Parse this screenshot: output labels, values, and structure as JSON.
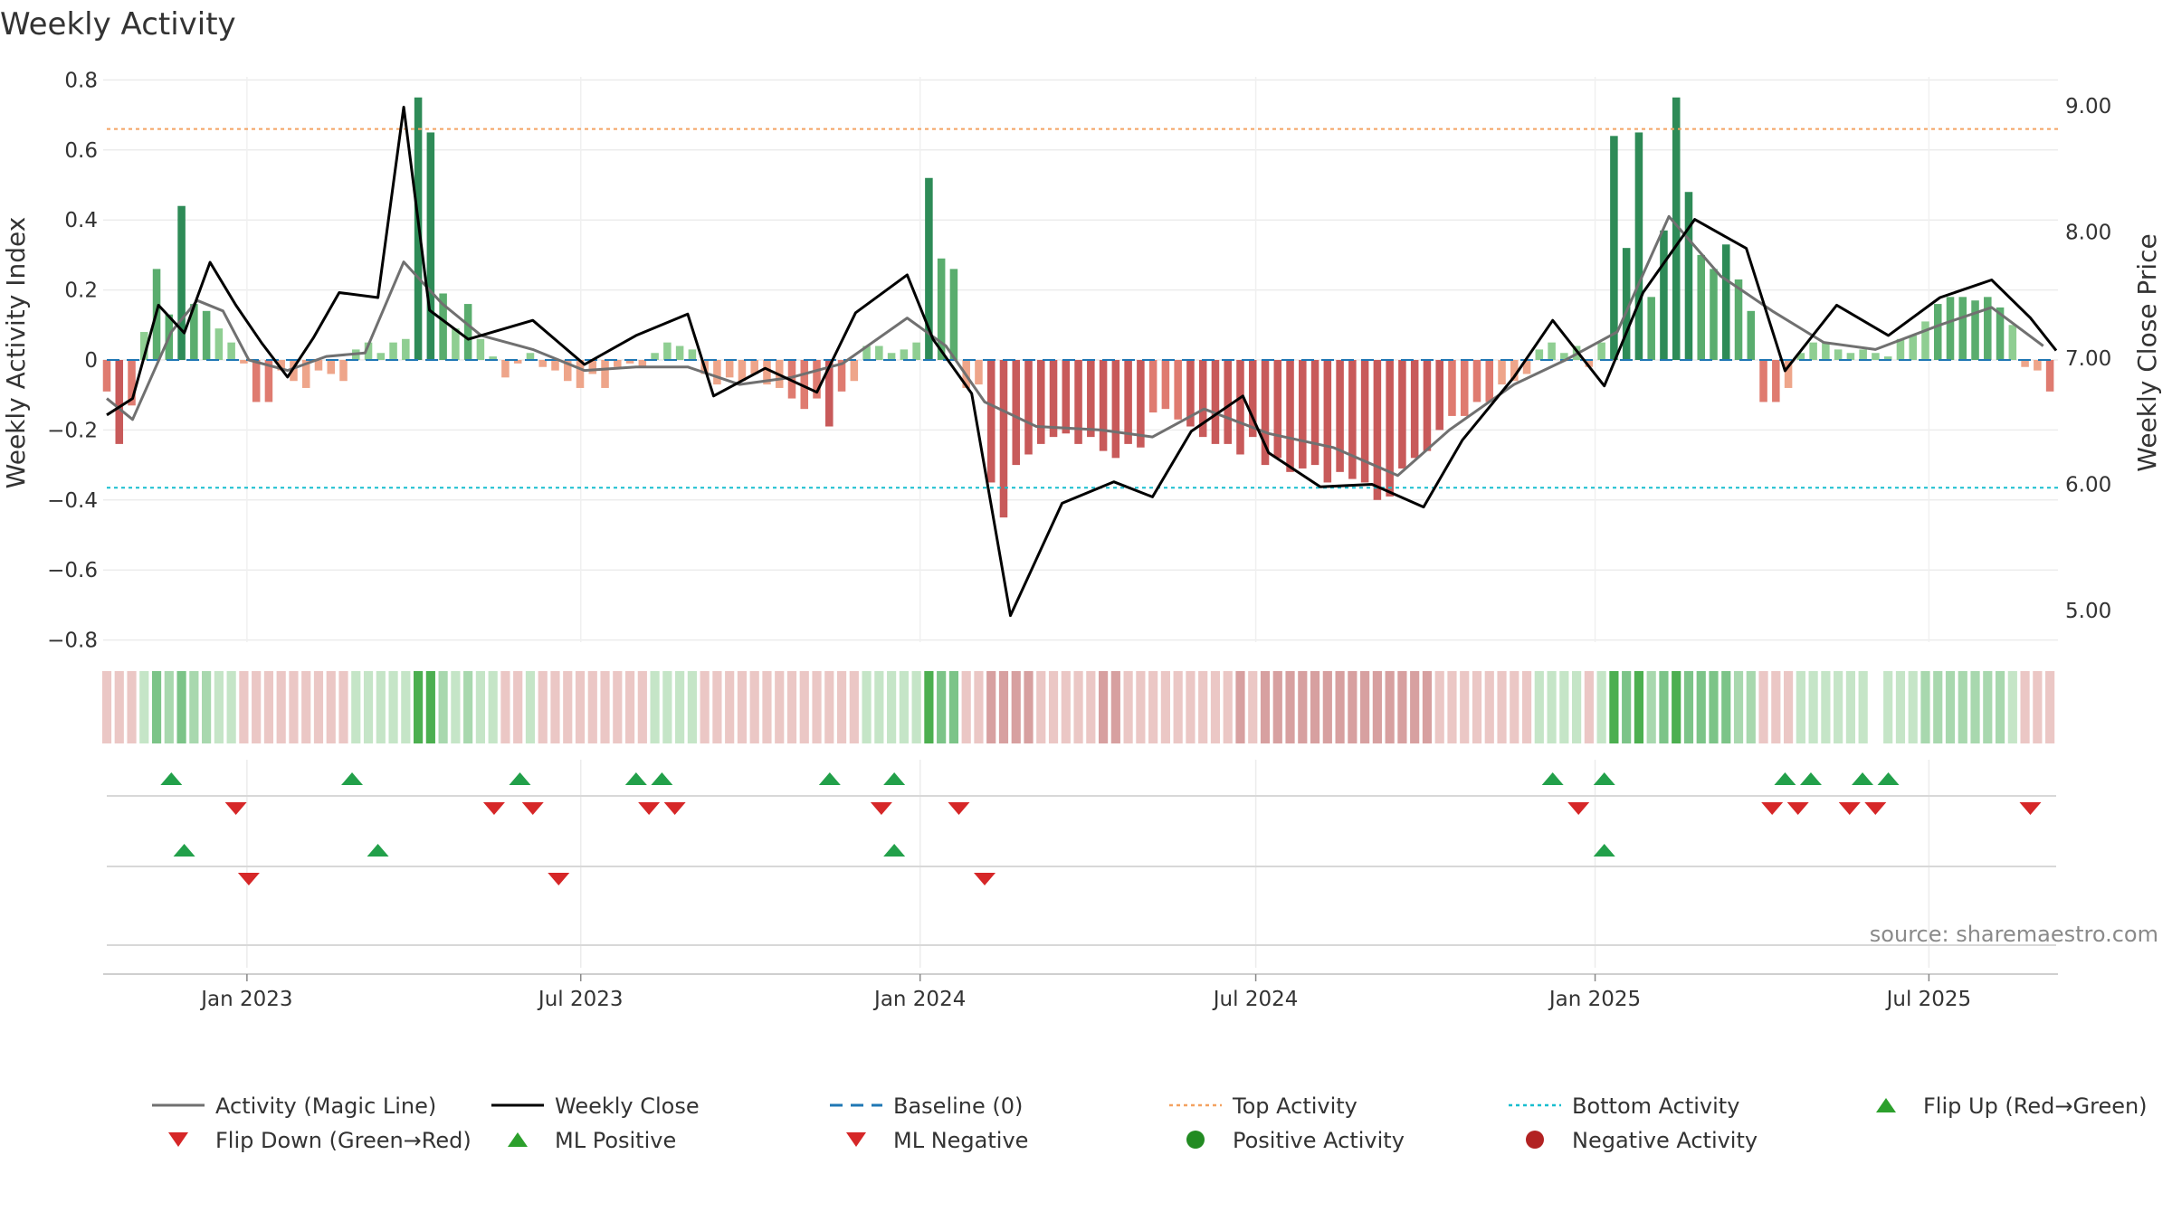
{
  "chart_data": {
    "type": "bar",
    "title": "Weekly Activity",
    "ylabel_left": "Weekly Activity Index",
    "ylabel_right": "Weekly Close Price",
    "source_text": "source: sharemaestro.com",
    "x_start": "2022-10-17",
    "x_end": "2025-09-08",
    "x_ticks": [
      {
        "date": "2023-01-01",
        "label": "Jan 2023"
      },
      {
        "date": "2023-07-01",
        "label": "Jul 2023"
      },
      {
        "date": "2024-01-01",
        "label": "Jan 2024"
      },
      {
        "date": "2024-07-01",
        "label": "Jul 2024"
      },
      {
        "date": "2025-01-01",
        "label": "Jan 2025"
      },
      {
        "date": "2025-07-01",
        "label": "Jul 2025"
      }
    ],
    "ylim_left": [
      -0.8,
      0.8
    ],
    "yticks_left": [
      {
        "v": 0.8,
        "label": "0.8"
      },
      {
        "v": 0.6,
        "label": "0.6"
      },
      {
        "v": 0.4,
        "label": "0.4"
      },
      {
        "v": 0.2,
        "label": "0.2"
      },
      {
        "v": 0,
        "label": "0"
      },
      {
        "v": -0.2,
        "label": "−0.2"
      },
      {
        "v": -0.4,
        "label": "−0.4"
      },
      {
        "v": -0.6,
        "label": "−0.6"
      },
      {
        "v": -0.8,
        "label": "−0.8"
      }
    ],
    "ylim_right": [
      4.74,
      9.16
    ],
    "yticks_right": [
      {
        "v": 9,
        "label": "9.00"
      },
      {
        "v": 8,
        "label": "8.00"
      },
      {
        "v": 7,
        "label": "7.00"
      },
      {
        "v": 6,
        "label": "6.00"
      },
      {
        "v": 5,
        "label": "5.00"
      }
    ],
    "top_activity": 0.66,
    "bottom_activity": -0.365,
    "activity_keypoints": [
      [
        "2022-10-17",
        -0.11
      ],
      [
        "2022-10-31",
        -0.17
      ],
      [
        "2022-11-21",
        0.08
      ],
      [
        "2022-12-05",
        0.17
      ],
      [
        "2022-12-19",
        0.14
      ],
      [
        "2023-01-02",
        0.0
      ],
      [
        "2023-01-23",
        -0.03
      ],
      [
        "2023-02-13",
        0.01
      ],
      [
        "2023-03-06",
        0.02
      ],
      [
        "2023-03-27",
        0.28
      ],
      [
        "2023-04-17",
        0.16
      ],
      [
        "2023-05-08",
        0.07
      ],
      [
        "2023-06-05",
        0.03
      ],
      [
        "2023-07-03",
        -0.03
      ],
      [
        "2023-07-31",
        -0.02
      ],
      [
        "2023-08-28",
        -0.02
      ],
      [
        "2023-09-25",
        -0.07
      ],
      [
        "2023-10-23",
        -0.05
      ],
      [
        "2023-11-20",
        -0.01
      ],
      [
        "2023-12-25",
        0.12
      ],
      [
        "2024-01-15",
        0.04
      ],
      [
        "2024-02-05",
        -0.12
      ],
      [
        "2024-03-04",
        -0.19
      ],
      [
        "2024-04-08",
        -0.2
      ],
      [
        "2024-05-06",
        -0.22
      ],
      [
        "2024-06-03",
        -0.14
      ],
      [
        "2024-07-08",
        -0.21
      ],
      [
        "2024-08-12",
        -0.25
      ],
      [
        "2024-09-16",
        -0.33
      ],
      [
        "2024-10-14",
        -0.2
      ],
      [
        "2024-11-18",
        -0.07
      ],
      [
        "2024-12-16",
        0.0
      ],
      [
        "2025-01-13",
        0.08
      ],
      [
        "2025-02-10",
        0.41
      ],
      [
        "2025-03-10",
        0.24
      ],
      [
        "2025-04-07",
        0.14
      ],
      [
        "2025-05-05",
        0.05
      ],
      [
        "2025-06-02",
        0.03
      ],
      [
        "2025-07-07",
        0.1
      ],
      [
        "2025-08-04",
        0.15
      ],
      [
        "2025-09-01",
        0.04
      ]
    ],
    "weekly_close_keypoints": [
      [
        "2022-10-17",
        6.55
      ],
      [
        "2022-10-31",
        6.68
      ],
      [
        "2022-11-14",
        7.42
      ],
      [
        "2022-11-28",
        7.2
      ],
      [
        "2022-12-12",
        7.76
      ],
      [
        "2022-12-26",
        7.42
      ],
      [
        "2023-01-09",
        7.12
      ],
      [
        "2023-01-23",
        6.85
      ],
      [
        "2023-02-06",
        7.16
      ],
      [
        "2023-02-20",
        7.52
      ],
      [
        "2023-03-13",
        7.48
      ],
      [
        "2023-03-27",
        8.99
      ],
      [
        "2023-04-10",
        7.38
      ],
      [
        "2023-05-01",
        7.15
      ],
      [
        "2023-06-05",
        7.3
      ],
      [
        "2023-07-03",
        6.95
      ],
      [
        "2023-07-31",
        7.18
      ],
      [
        "2023-08-28",
        7.35
      ],
      [
        "2023-09-11",
        6.7
      ],
      [
        "2023-10-09",
        6.92
      ],
      [
        "2023-11-06",
        6.73
      ],
      [
        "2023-11-27",
        7.36
      ],
      [
        "2023-12-25",
        7.66
      ],
      [
        "2024-01-08",
        7.15
      ],
      [
        "2024-01-29",
        6.72
      ],
      [
        "2024-02-19",
        4.96
      ],
      [
        "2024-03-18",
        5.85
      ],
      [
        "2024-04-15",
        6.02
      ],
      [
        "2024-05-06",
        5.9
      ],
      [
        "2024-05-27",
        6.42
      ],
      [
        "2024-06-24",
        6.7
      ],
      [
        "2024-07-08",
        6.25
      ],
      [
        "2024-08-05",
        5.98
      ],
      [
        "2024-09-02",
        6.0
      ],
      [
        "2024-09-30",
        5.82
      ],
      [
        "2024-10-21",
        6.35
      ],
      [
        "2024-11-18",
        6.85
      ],
      [
        "2024-12-09",
        7.3
      ],
      [
        "2025-01-06",
        6.78
      ],
      [
        "2025-01-27",
        7.52
      ],
      [
        "2025-02-24",
        8.1
      ],
      [
        "2025-03-24",
        7.87
      ],
      [
        "2025-04-14",
        6.9
      ],
      [
        "2025-05-12",
        7.42
      ],
      [
        "2025-06-09",
        7.18
      ],
      [
        "2025-07-07",
        7.48
      ],
      [
        "2025-08-04",
        7.62
      ],
      [
        "2025-08-25",
        7.32
      ],
      [
        "2025-09-08",
        7.06
      ]
    ],
    "bars": [
      -0.09,
      -0.24,
      -0.13,
      0.08,
      0.26,
      0.13,
      0.44,
      0.16,
      0.14,
      0.09,
      0.05,
      -0.01,
      -0.12,
      -0.12,
      -0.03,
      -0.06,
      -0.08,
      -0.03,
      -0.04,
      -0.06,
      0.03,
      0.05,
      0.02,
      0.05,
      0.06,
      0.75,
      0.65,
      0.19,
      0.09,
      0.16,
      0.06,
      0.01,
      -0.05,
      -0.01,
      0.02,
      -0.02,
      -0.03,
      -0.06,
      -0.08,
      -0.04,
      -0.08,
      -0.02,
      -0.01,
      -0.02,
      0.02,
      0.05,
      0.04,
      0.03,
      -0.04,
      -0.07,
      -0.05,
      -0.06,
      -0.04,
      -0.07,
      -0.08,
      -0.11,
      -0.14,
      -0.11,
      -0.19,
      -0.09,
      -0.06,
      0.04,
      0.04,
      0.02,
      0.03,
      0.05,
      0.52,
      0.29,
      0.26,
      -0.08,
      -0.07,
      -0.35,
      -0.45,
      -0.3,
      -0.27,
      -0.24,
      -0.22,
      -0.21,
      -0.24,
      -0.22,
      -0.26,
      -0.28,
      -0.24,
      -0.25,
      -0.15,
      -0.14,
      -0.17,
      -0.19,
      -0.22,
      -0.24,
      -0.24,
      -0.27,
      -0.22,
      -0.3,
      -0.28,
      -0.32,
      -0.31,
      -0.3,
      -0.35,
      -0.32,
      -0.34,
      -0.35,
      -0.4,
      -0.39,
      -0.31,
      -0.28,
      -0.26,
      -0.2,
      -0.16,
      -0.16,
      -0.12,
      -0.12,
      -0.07,
      -0.06,
      -0.04,
      0.03,
      0.05,
      0.02,
      0.04,
      -0.02,
      0.05,
      0.64,
      0.32,
      0.65,
      0.18,
      0.37,
      0.75,
      0.48,
      0.3,
      0.26,
      0.33,
      0.23,
      0.14,
      -0.12,
      -0.12,
      -0.08,
      0.02,
      0.05,
      0.05,
      0.03,
      0.02,
      0.03,
      0.02,
      0.01,
      0.06,
      0.07,
      0.11,
      0.16,
      0.18,
      0.18,
      0.17,
      0.18,
      0.15,
      0.1,
      -0.02,
      -0.03,
      -0.09
    ],
    "regime_gap_index": 142,
    "markers_row1_up": [
      "2022-11-21",
      "2023-02-27",
      "2023-05-29",
      "2023-07-31",
      "2023-08-14",
      "2023-11-13",
      "2023-12-18",
      "2024-12-09",
      "2025-01-06",
      "2025-04-14",
      "2025-04-28",
      "2025-05-26",
      "2025-06-09"
    ],
    "markers_row1_down": [
      "2022-12-26",
      "2023-05-15",
      "2023-06-05",
      "2023-08-07",
      "2023-08-21",
      "2023-12-11",
      "2024-01-22",
      "2024-12-23",
      "2025-04-07",
      "2025-04-21",
      "2025-05-19",
      "2025-06-02",
      "2025-08-25"
    ],
    "markers_row2_up": [
      "2022-11-28",
      "2023-03-13",
      "2023-12-18",
      "2025-01-06"
    ],
    "markers_row2_down": [
      "2023-01-02",
      "2023-06-19",
      "2024-02-05"
    ],
    "legend": [
      {
        "label": "Activity (Magic Line)",
        "symbol": "line",
        "color": "#707070"
      },
      {
        "label": "Weekly Close",
        "symbol": "line",
        "color": "#000000"
      },
      {
        "label": "Baseline (0)",
        "symbol": "dash",
        "color": "#1f77b4"
      },
      {
        "label": "Top Activity",
        "symbol": "dot",
        "color": "#f4a261"
      },
      {
        "label": "Bottom Activity",
        "symbol": "dot",
        "color": "#17becf"
      },
      {
        "label": "Flip Up (Red→Green)",
        "symbol": "tri-up",
        "color": "#2ca02c"
      },
      {
        "label": "Flip Down (Green→Red)",
        "symbol": "tri-down",
        "color": "#d62728"
      },
      {
        "label": "ML Positive",
        "symbol": "tri-up",
        "color": "#2ca02c"
      },
      {
        "label": "ML Negative",
        "symbol": "tri-down",
        "color": "#d62728"
      },
      {
        "label": "Positive Activity",
        "symbol": "circle",
        "color": "#228b22"
      },
      {
        "label": "Negative Activity",
        "symbol": "circle",
        "color": "#b22222"
      }
    ]
  }
}
